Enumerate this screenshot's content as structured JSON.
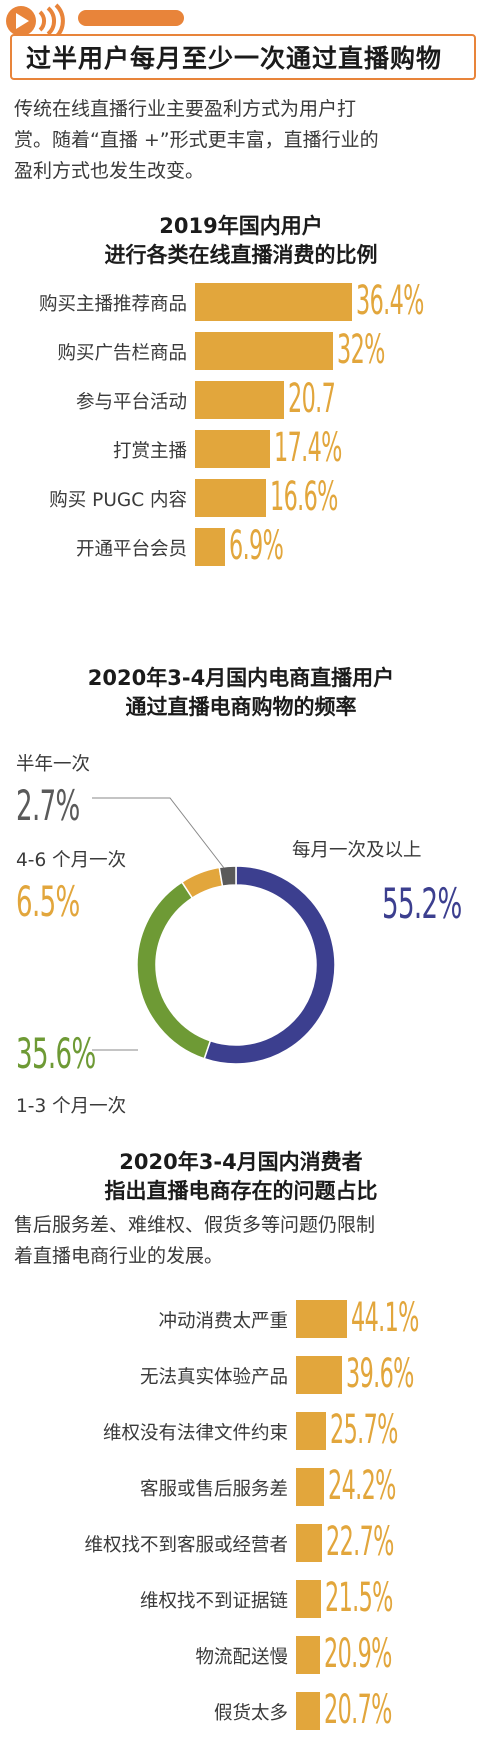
{
  "header": {
    "title": "过半用户每月至少一次通过直播购物"
  },
  "intro": {
    "line1": "传统在线直播行业主要盈利方式为用户打",
    "line2": "赏。随着“直播 +”形式更丰富，直播行业的",
    "line3": "盈利方式也发生改变。"
  },
  "colors": {
    "accent": "#e8843a",
    "bar": "#e2a63c",
    "navy": "#3c3f8f",
    "green": "#6e9a35",
    "gray": "#5a5a5a"
  },
  "chart_data": [
    {
      "type": "bar",
      "title_line1": "2019年国内用户",
      "title_line2": "进行各类在线直播消费的比例",
      "categories": [
        "购买主播推荐商品",
        "购买广告栏商品",
        "参与平台活动",
        "打赏主播",
        "购买 PUGC 内容",
        "开通平台会员"
      ],
      "values": [
        36.4,
        32,
        20.7,
        17.4,
        16.6,
        6.9
      ],
      "value_labels": [
        "36.4%",
        "32%",
        "20.7",
        "17.4%",
        "16.6%",
        "6.9%"
      ],
      "xlim": [
        0,
        40
      ]
    },
    {
      "type": "pie",
      "title_line1": "2020年3-4月国内电商直播用户",
      "title_line2": "通过直播电商购物的频率",
      "categories": [
        "每月一次及以上",
        "1-3 个月一次",
        "4-6 个月一次",
        "半年一次"
      ],
      "values": [
        55.2,
        35.6,
        6.5,
        2.7
      ],
      "value_labels": [
        "55.2%",
        "35.6%",
        "6.5%",
        "2.7%"
      ],
      "colors": [
        "#3c3f8f",
        "#6e9a35",
        "#e2a63c",
        "#5a5a5a"
      ]
    },
    {
      "type": "bar",
      "title_line1": "2020年3-4月国内消费者",
      "title_line2": "指出直播电商存在的问题占比",
      "note_line1": "售后服务差、难维权、假货多等问题仍限制",
      "note_line2": "着直播电商行业的发展。",
      "categories": [
        "冲动消费太严重",
        "无法真实体验产品",
        "维权没有法律文件约束",
        "客服或售后服务差",
        "维权找不到客服或经营者",
        "维权找不到证据链",
        "物流配送慢",
        "假货太多"
      ],
      "values": [
        44.1,
        39.6,
        25.7,
        24.2,
        22.7,
        21.5,
        20.9,
        20.7
      ],
      "value_labels": [
        "44.1%",
        "39.6%",
        "25.7%",
        "24.2%",
        "22.7%",
        "21.5%",
        "20.9%",
        "20.7%"
      ],
      "xlim": [
        0,
        50
      ]
    }
  ]
}
